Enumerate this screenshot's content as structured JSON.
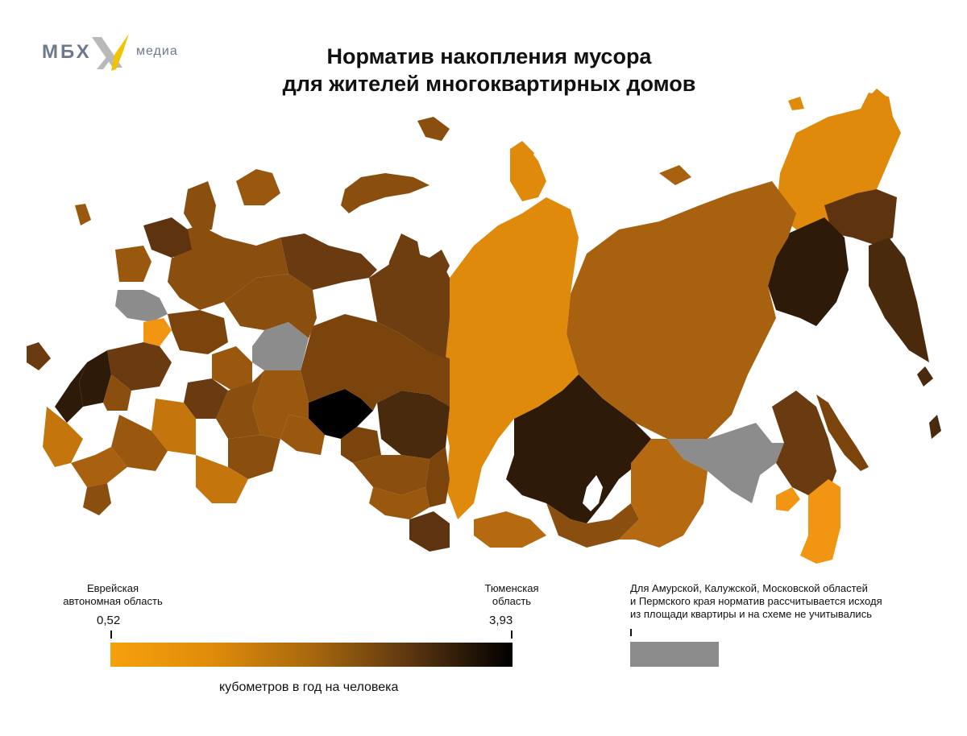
{
  "logo": {
    "brand": "МБХ",
    "sub": "медиа"
  },
  "title": {
    "line1": "Норматив накопления мусора",
    "line2": "для жителей многоквартирных домов"
  },
  "legend": {
    "min": {
      "region_line1": "Еврейская",
      "region_line2": "автономная область",
      "value": "0,52"
    },
    "max": {
      "region_line1": "Тюменская",
      "region_line2": "область",
      "value": "3,93"
    },
    "unit": "кубометров в год на человека",
    "colors": {
      "low": "#f6a00c",
      "high": "#000000"
    }
  },
  "note": {
    "line1": "Для Амурской, Калужской, Московской областей",
    "line2": "и Пермского края норматив рассчитывается исходя",
    "line3": "из площади квартиры и на схеме не учитывались",
    "color": "#8c8c8c"
  },
  "map_colors": {
    "light": "#e08a0c",
    "medium": "#b56a12",
    "mid_dark": "#8a4f0e",
    "dark": "#5e3410",
    "darkest": "#2e1a08",
    "black": "#000000",
    "excluded": "#8c8c8c"
  }
}
